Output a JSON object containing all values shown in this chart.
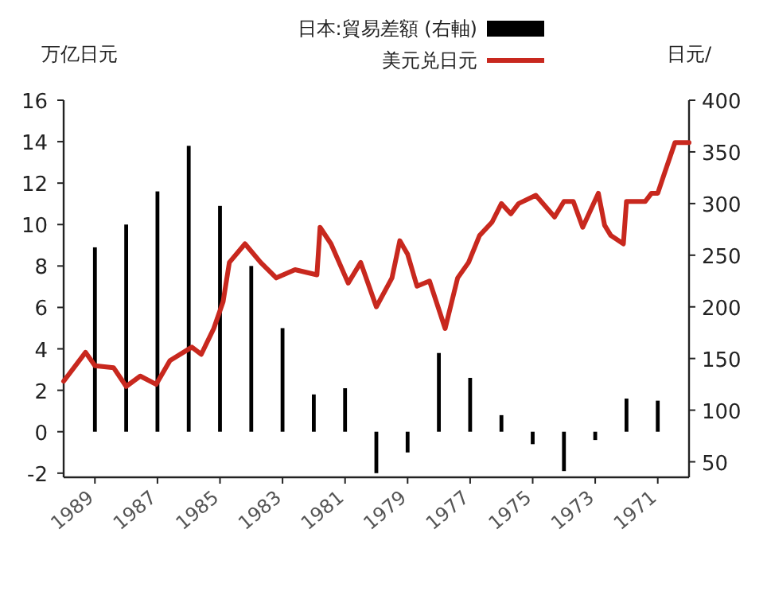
{
  "chart_data": {
    "type": "bar",
    "ylabel": "万亿日元",
    "y2label": "日元/",
    "xlim": [
      1990,
      1970
    ],
    "xticks": [
      1989,
      1987,
      1985,
      1983,
      1981,
      1979,
      1977,
      1975,
      1973,
      1971
    ],
    "ylim": [
      -2.2,
      16
    ],
    "yticks": [
      {
        "value": -2,
        "label": "-2"
      },
      0,
      2,
      4,
      6,
      8,
      10,
      12,
      14,
      16
    ],
    "y2lim": [
      35,
      400
    ],
    "y2ticks": [
      50,
      100,
      150,
      200,
      250,
      300,
      350,
      400
    ],
    "legend": "top",
    "grid": false,
    "series": [
      {
        "name": "日本:貿易差額 (右軸)",
        "color": "#000000",
        "x": [
          1989,
          1988,
          1987,
          1986,
          1985,
          1984,
          1983,
          1982,
          1981,
          1980,
          1979,
          1978,
          1977,
          1976,
          1975,
          1974,
          1973,
          1972,
          1971
        ],
        "values": [
          8.9,
          10.0,
          11.6,
          13.8,
          10.9,
          8.0,
          5.0,
          1.8,
          2.1,
          -2.0,
          -1.0,
          3.8,
          2.6,
          0.8,
          -0.6,
          -1.9,
          -0.4,
          1.6,
          1.5
        ]
      },
      {
        "name": "美元兑日元",
        "type": "line",
        "axis": "y2",
        "color": "#c8281e",
        "x": [
          1990.0,
          1989.3,
          1989.0,
          1988.4,
          1988.0,
          1987.55,
          1987.04,
          1986.6,
          1985.9,
          1985.6,
          1985.2,
          1984.9,
          1984.7,
          1984.2,
          1983.7,
          1983.2,
          1982.6,
          1981.9,
          1981.8,
          1981.45,
          1980.9,
          1980.5,
          1980.0,
          1979.5,
          1979.25,
          1979.0,
          1978.7,
          1978.3,
          1977.8,
          1977.4,
          1977.05,
          1976.7,
          1976.3,
          1976.0,
          1975.7,
          1975.45,
          1974.9,
          1974.3,
          1974.0,
          1973.7,
          1973.4,
          1972.9,
          1972.7,
          1972.5,
          1972.1,
          1972.0,
          1971.4,
          1971.2,
          1971.0,
          1970.8,
          1970.45,
          1970.0
        ],
        "values": [
          128,
          156,
          143,
          141,
          123,
          133,
          125,
          148,
          161,
          154,
          179,
          205,
          243,
          261,
          243,
          228,
          236,
          231,
          277,
          261,
          223,
          243,
          200,
          228,
          264,
          251,
          220,
          225,
          179,
          228,
          243,
          269,
          282,
          300,
          290,
          300,
          308,
          287,
          302,
          302,
          277,
          310,
          279,
          269,
          261,
          302,
          302,
          310,
          310,
          328,
          359,
          359
        ]
      }
    ]
  }
}
